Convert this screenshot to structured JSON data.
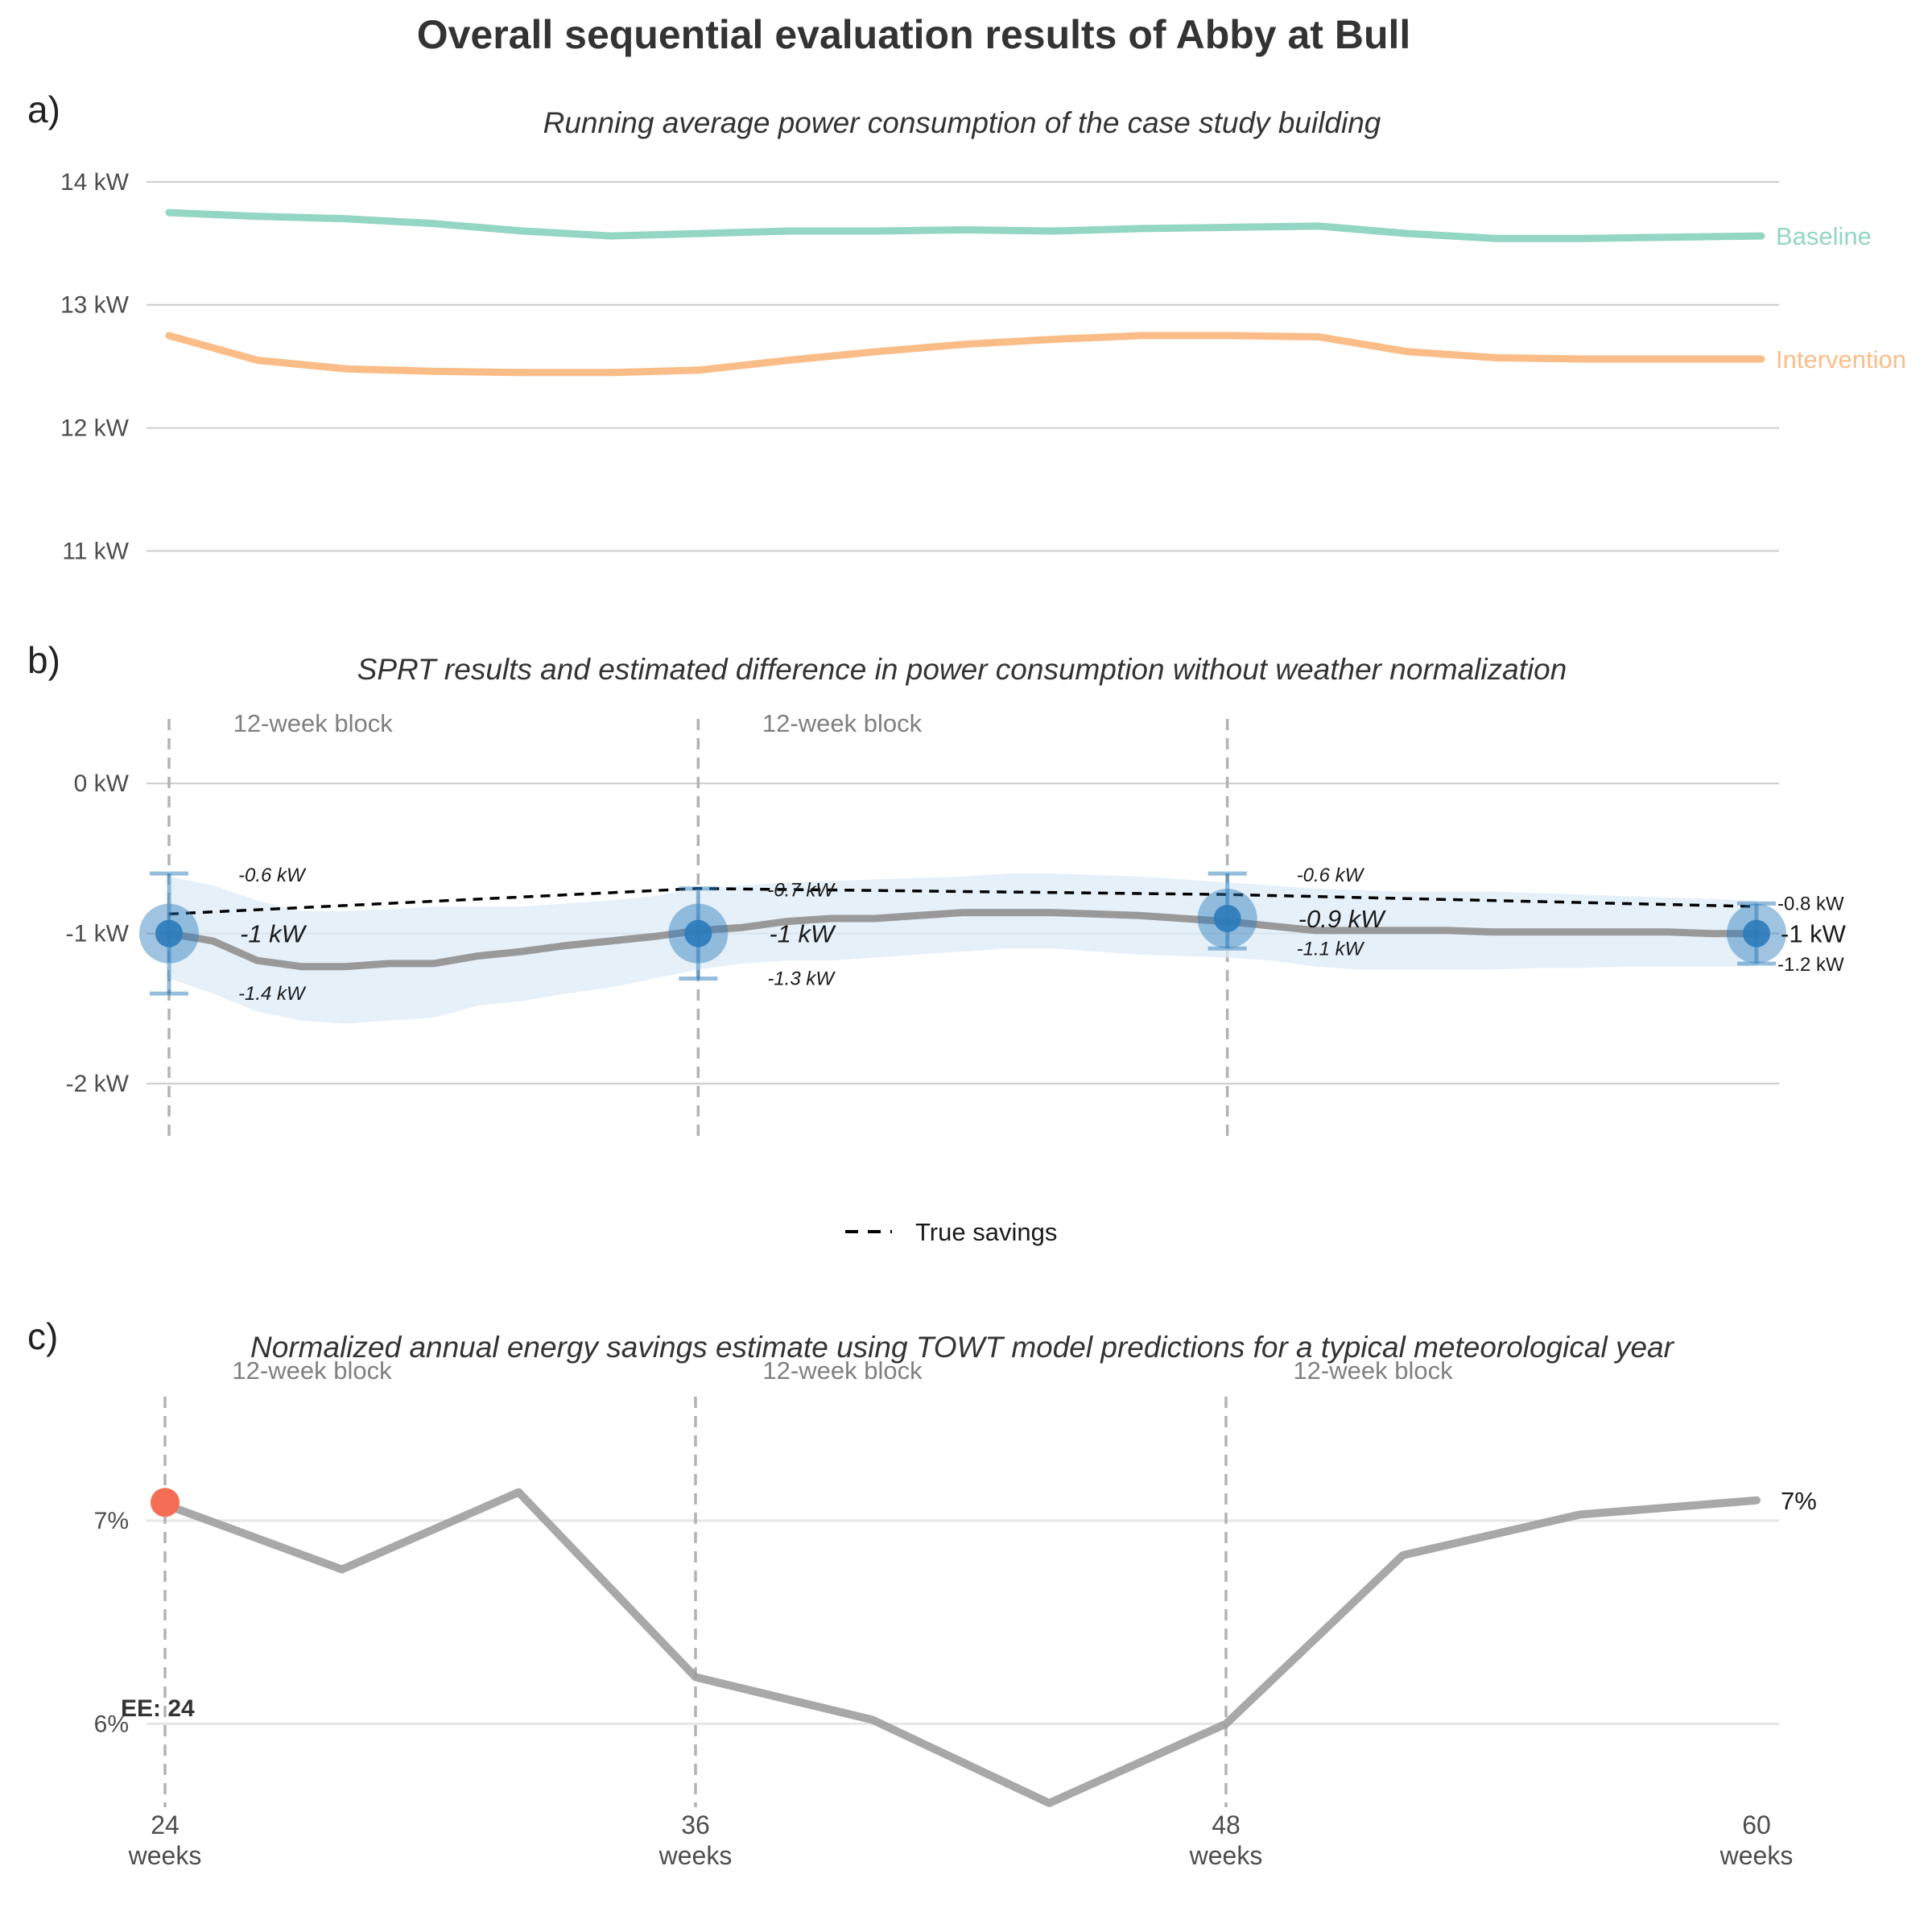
{
  "title": "Overall sequential evaluation results of Abby at Bull",
  "colors": {
    "baseline": "#93d6c3",
    "intervention": "#fbbd88",
    "estimate_line": "#999999",
    "ci_band": "#deebf7",
    "sprt_point": "#2b7bba",
    "ee_point": "#f46d54",
    "true_savings": "#000000"
  },
  "x_axis": {
    "ticks": [
      24,
      36,
      48,
      60
    ],
    "tick_labels": [
      {
        "value": "24",
        "unit": "weeks"
      },
      {
        "value": "36",
        "unit": "weeks"
      },
      {
        "value": "48",
        "unit": "weeks"
      },
      {
        "value": "60",
        "unit": "weeks"
      }
    ],
    "range": [
      24,
      60
    ]
  },
  "chart_data": [
    {
      "panel": "a)",
      "type": "line",
      "title": "Running average power consumption of the case study building",
      "ylim": [
        10.8,
        14.3
      ],
      "yticks": [
        11,
        12,
        13,
        14
      ],
      "ytick_labels": [
        "11 kW",
        "12 kW",
        "13 kW",
        "14 kW"
      ],
      "grid": true,
      "x": [
        24,
        26,
        28,
        30,
        32,
        34,
        36,
        38,
        40,
        42,
        44,
        46,
        48,
        50,
        52,
        54,
        56,
        58,
        60
      ],
      "series": [
        {
          "name": "Baseline",
          "values": [
            13.75,
            13.72,
            13.7,
            13.66,
            13.6,
            13.56,
            13.58,
            13.6,
            13.6,
            13.61,
            13.6,
            13.62,
            13.63,
            13.64,
            13.58,
            13.54,
            13.54,
            13.55,
            13.56
          ]
        },
        {
          "name": "Intervention",
          "values": [
            12.75,
            12.55,
            12.48,
            12.46,
            12.45,
            12.45,
            12.47,
            12.55,
            12.62,
            12.68,
            12.72,
            12.75,
            12.75,
            12.74,
            12.62,
            12.57,
            12.56,
            12.56,
            12.56
          ]
        }
      ]
    },
    {
      "panel": "b)",
      "type": "line",
      "title": "SPRT results and estimated difference in power consumption without weather normalization",
      "ylim": [
        -2.45,
        0.5
      ],
      "yticks": [
        0,
        -1,
        -2
      ],
      "ytick_labels": [
        "0 kW",
        "-1 kW",
        "-2 kW"
      ],
      "grid": true,
      "block_labels": [
        "12-week block",
        "12-week block"
      ],
      "estimate": {
        "x": [
          24,
          25,
          26,
          27,
          28,
          29,
          30,
          31,
          32,
          33,
          34,
          35,
          36,
          37,
          38,
          39,
          40,
          41,
          42,
          43,
          44,
          45,
          46,
          47,
          48,
          49,
          50,
          51,
          52,
          53,
          54,
          55,
          56,
          57,
          58,
          59,
          60
        ],
        "values": [
          -1.0,
          -1.05,
          -1.18,
          -1.22,
          -1.22,
          -1.2,
          -1.2,
          -1.15,
          -1.12,
          -1.08,
          -1.05,
          -1.02,
          -0.98,
          -0.96,
          -0.92,
          -0.9,
          -0.9,
          -0.88,
          -0.86,
          -0.86,
          -0.86,
          -0.87,
          -0.88,
          -0.9,
          -0.92,
          -0.95,
          -0.98,
          -0.98,
          -0.98,
          -0.98,
          -0.99,
          -0.99,
          -0.99,
          -0.99,
          -0.99,
          -1.0,
          -1.0
        ],
        "upper": [
          -0.62,
          -0.68,
          -0.78,
          -0.85,
          -0.85,
          -0.84,
          -0.82,
          -0.82,
          -0.82,
          -0.8,
          -0.78,
          -0.75,
          -0.7,
          -0.68,
          -0.66,
          -0.65,
          -0.64,
          -0.63,
          -0.62,
          -0.6,
          -0.6,
          -0.61,
          -0.62,
          -0.64,
          -0.66,
          -0.68,
          -0.7,
          -0.71,
          -0.72,
          -0.72,
          -0.72,
          -0.73,
          -0.74,
          -0.75,
          -0.76,
          -0.77,
          -0.78
        ],
        "lower": [
          -1.3,
          -1.4,
          -1.52,
          -1.58,
          -1.6,
          -1.58,
          -1.56,
          -1.48,
          -1.45,
          -1.4,
          -1.36,
          -1.3,
          -1.24,
          -1.2,
          -1.18,
          -1.18,
          -1.16,
          -1.14,
          -1.12,
          -1.1,
          -1.1,
          -1.12,
          -1.14,
          -1.15,
          -1.16,
          -1.18,
          -1.22,
          -1.24,
          -1.24,
          -1.24,
          -1.24,
          -1.23,
          -1.23,
          -1.22,
          -1.22,
          -1.22,
          -1.22
        ]
      },
      "true_savings": {
        "name": "True savings",
        "x": [
          24,
          36,
          48,
          60
        ],
        "values": [
          -0.87,
          -0.7,
          -0.74,
          -0.82
        ]
      },
      "sprt_points": [
        {
          "x": 24,
          "estimate": -1.0,
          "low": -1.4,
          "high": -0.6,
          "est_label": "-1 kW",
          "high_label": "-0.6 kW",
          "low_label": "-1.4 kW"
        },
        {
          "x": 36,
          "estimate": -1.0,
          "low": -1.3,
          "high": -0.7,
          "est_label": "-1 kW",
          "high_label": "-0.7 kW",
          "low_label": "-1.3 kW"
        },
        {
          "x": 48,
          "estimate": -0.9,
          "low": -1.1,
          "high": -0.6,
          "est_label": "-0.9 kW",
          "high_label": "-0.6 kW",
          "low_label": "-1.1 kW"
        },
        {
          "x": 60,
          "estimate": -1.0,
          "low": -1.2,
          "high": -0.8,
          "est_label": "-1 kW",
          "high_label": "-0.8 kW",
          "low_label": "-1.2 kW"
        }
      ],
      "legend": {
        "placement": "bottom",
        "entries": [
          "True savings"
        ]
      }
    },
    {
      "panel": "c)",
      "type": "line",
      "title": "Normalized annual energy savings estimate using TOWT model predictions for a typical meteorological year",
      "ylim": [
        5.55,
        7.65
      ],
      "yticks": [
        7,
        6
      ],
      "ytick_labels": [
        "7%",
        "6%"
      ],
      "grid": true,
      "block_labels": [
        "12-week block",
        "12-week block",
        "12-week block"
      ],
      "x": [
        24,
        28,
        32,
        36,
        40,
        44,
        48,
        52,
        56,
        60
      ],
      "values": [
        7.08,
        6.76,
        7.14,
        6.23,
        6.02,
        5.61,
        6.0,
        6.83,
        7.03,
        7.1
      ],
      "end_label": "7%",
      "ee_marker": {
        "x": 24,
        "value": 7.09,
        "label": "EE: 24"
      }
    }
  ]
}
